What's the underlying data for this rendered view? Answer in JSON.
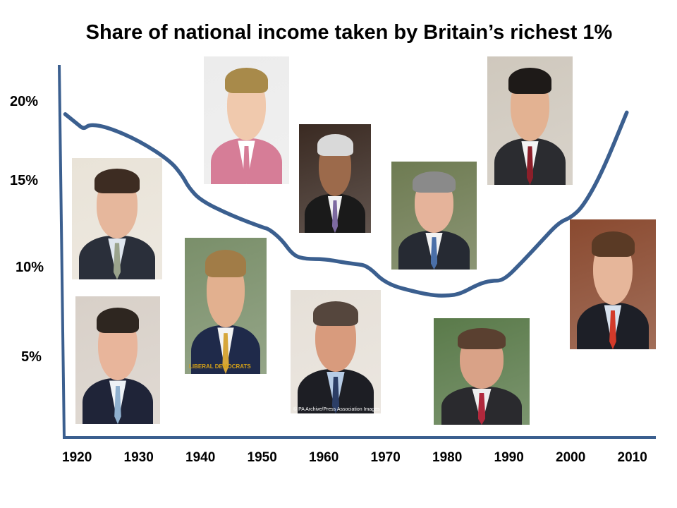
{
  "chart_data": {
    "type": "line",
    "title": "Share of  national income taken by Britain’s richest 1%",
    "xlabel": "",
    "ylabel": "",
    "x_ticks": [
      "1920",
      "1930",
      "1940",
      "1950",
      "1960",
      "1970",
      "1980",
      "1990",
      "2000",
      "2010"
    ],
    "y_ticks": [
      "5%",
      "10%",
      "15%",
      "20%"
    ],
    "xlim": [
      1917,
      2012
    ],
    "ylim": [
      0,
      22.5
    ],
    "grid": false,
    "legend": "none",
    "series": [
      {
        "color": "#3b5f8f",
        "x": [
          1918,
          1920,
          1921,
          1922,
          1925,
          1930,
          1935,
          1937,
          1938,
          1940,
          1945,
          1950,
          1951,
          1953,
          1955,
          1957,
          1960,
          1963,
          1965,
          1967,
          1970,
          1975,
          1978,
          1980,
          1982,
          1985,
          1987,
          1989,
          1992,
          1995,
          1998,
          2000,
          2002,
          2005,
          2009
        ],
        "y": [
          19.5,
          18.9,
          18.6,
          18.9,
          18.7,
          17.9,
          16.7,
          15.8,
          15.1,
          14.3,
          13.4,
          12.7,
          12.6,
          12.0,
          11.0,
          10.8,
          10.8,
          10.6,
          10.5,
          10.4,
          9.3,
          8.8,
          8.6,
          8.6,
          8.7,
          9.3,
          9.5,
          9.5,
          10.6,
          11.8,
          13.0,
          13.3,
          14.0,
          16.0,
          19.6
        ]
      }
    ]
  },
  "photos": [
    {
      "name": "photo-man-dark-suit",
      "bg": "#e9e3d8",
      "suit": "#2a2f3a",
      "shirt": "#dfe6ee",
      "tie": "#9aa38c",
      "skin": "#e6b79c",
      "hair": "#3d2c22"
    },
    {
      "name": "photo-man-navy-suit",
      "bg": "#d8d0c8",
      "suit": "#1f2438",
      "shirt": "#eef2f6",
      "tie": "#8fb0cf",
      "skin": "#e8b59b",
      "hair": "#2e2620"
    },
    {
      "name": "photo-woman-pink-jacket",
      "bg": "#ececec",
      "suit": "#d67d97",
      "shirt": "#ffffff",
      "tie": "#d67d97",
      "skin": "#f0c9ad",
      "hair": "#a88a4a"
    },
    {
      "name": "photo-man-yellow-tie",
      "bg": "#7a8f6a",
      "suit": "#1f2a4a",
      "shirt": "#f3f3f3",
      "tie": "#d6a63a",
      "skin": "#e2b08f",
      "hair": "#a17c47",
      "logo": "LIBERAL DEMOCRATS"
    },
    {
      "name": "photo-man-glasses-purple-tie",
      "bg": "#3a2a22",
      "suit": "#1a1a1a",
      "shirt": "#f2f2f2",
      "tie": "#7d6aa0",
      "skin": "#9c6a4b",
      "hair": "#d9d9d9"
    },
    {
      "name": "photo-man-blue-shirt",
      "bg": "#e6e0d8",
      "suit": "#1d1e24",
      "shirt": "#b7cce6",
      "tie": "#2c3e66",
      "skin": "#d89b7d",
      "hair": "#55463d",
      "caption": "© PA Archive/Press Association Images"
    },
    {
      "name": "photo-man-pointing",
      "bg": "#6e7b52",
      "suit": "#262a33",
      "shirt": "#f2f2f2",
      "tie": "#4a6fa8",
      "skin": "#e5b39a",
      "hair": "#8a8a8a"
    },
    {
      "name": "photo-man-parliament-bench",
      "bg": "#5a7a4a",
      "suit": "#2a2a2e",
      "shirt": "#eeeeee",
      "tie": "#b0283c",
      "skin": "#d9a287",
      "hair": "#5a4030"
    },
    {
      "name": "photo-man-big-ben",
      "bg": "#cfc8bd",
      "suit": "#2b2c30",
      "shirt": "#f4f4f4",
      "tie": "#8c1f2a",
      "skin": "#e3b292",
      "hair": "#1e1a18"
    },
    {
      "name": "photo-man-red-tie",
      "bg": "#8a4a30",
      "suit": "#1d1f27",
      "shirt": "#d8e2ee",
      "tie": "#d43a2a",
      "skin": "#e6b69a",
      "hair": "#5a3a25"
    }
  ]
}
